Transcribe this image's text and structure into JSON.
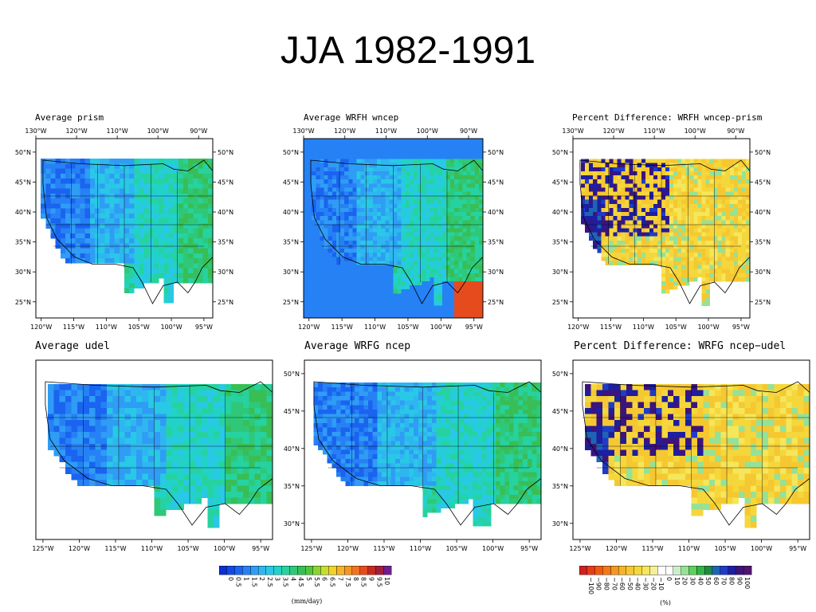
{
  "slide": {
    "title": "JJA 1982-1991"
  },
  "panels": [
    {
      "title": "Average prism",
      "field": "rainfall",
      "lon_ticks_top": [
        "130°W",
        "120°W",
        "110°W",
        "100°W",
        "90°W"
      ],
      "lon_ticks_bottom": [
        "120°W",
        "115°W",
        "110°W",
        "105°W",
        "100°W",
        "95°W"
      ],
      "lat_ticks_left": [
        "50°N",
        "45°N",
        "40°N",
        "35°N",
        "30°N",
        "25°N"
      ],
      "lat_ticks_right": [
        "50°N",
        "45°N",
        "40°N",
        "35°N",
        "30°N",
        "25°N"
      ]
    },
    {
      "title": "Average WRFH wncep",
      "field": "rainfall",
      "lon_ticks_top": [
        "130°W",
        "120°W",
        "110°W",
        "100°W",
        "90°W"
      ],
      "lon_ticks_bottom": [
        "120°W",
        "115°W",
        "110°W",
        "105°W",
        "100°W",
        "95°W"
      ],
      "lat_ticks_left": [
        "50°N",
        "45°N",
        "40°N",
        "35°N",
        "30°N",
        "25°N"
      ],
      "lat_ticks_right": [
        "50°N",
        "45°N",
        "40°N",
        "35°N",
        "30°N",
        "25°N"
      ]
    },
    {
      "title": "Percent Difference: WRFH wncep-prism",
      "field": "percent",
      "lon_ticks_top": [
        "130°W",
        "120°W",
        "110°W",
        "100°W",
        "90°W"
      ],
      "lon_ticks_bottom": [
        "120°W",
        "115°W",
        "110°W",
        "105°W",
        "100°W",
        "95°W"
      ],
      "lat_ticks_left": [
        "50°N",
        "45°N",
        "40°N",
        "35°N",
        "30°N",
        "25°N"
      ],
      "lat_ticks_right": [
        "50°N",
        "45°N",
        "40°N",
        "35°N",
        "30°N",
        "25°N"
      ]
    },
    {
      "title": "Average udel",
      "field": "rainfall",
      "lon_ticks_bottom": [
        "125°W",
        "120°W",
        "115°W",
        "110°W",
        "105°W",
        "100°W",
        "95°W"
      ],
      "lat_ticks_left": []
    },
    {
      "title": "Average WRFG ncep",
      "field": "rainfall",
      "lon_ticks_bottom": [
        "125°W",
        "120°W",
        "115°W",
        "110°W",
        "105°W",
        "100°W",
        "95°W"
      ],
      "lat_ticks_left": [
        "50°N",
        "45°N",
        "40°N",
        "35°N",
        "30°N"
      ]
    },
    {
      "title": "Percent Difference: WRFG ncep−udel",
      "field": "percent",
      "lon_ticks_bottom": [
        "125°W",
        "120°W",
        "115°W",
        "110°W",
        "105°W",
        "100°W",
        "95°W"
      ],
      "lat_ticks_left": [
        "50°N",
        "45°N",
        "40°N",
        "35°N",
        "30°N"
      ]
    }
  ],
  "colorbars": [
    {
      "unit": "(mm/day)",
      "labels": [
        "0",
        "0.5",
        "1",
        "1.5",
        "2",
        "2.5",
        "3",
        "3.5",
        "4",
        "4.5",
        "5",
        "5.5",
        "6",
        "6.5",
        "7",
        "7.5",
        "8",
        "8.5",
        "9",
        "9.5",
        "10"
      ],
      "colors": [
        "#0a2fd2",
        "#1149e6",
        "#1a64f0",
        "#2681f5",
        "#2f9cf5",
        "#2fb6f0",
        "#28c8e6",
        "#22d2c8",
        "#26d2a0",
        "#2ec878",
        "#38be55",
        "#52c63a",
        "#8cd232",
        "#c8dc2d",
        "#f0d228",
        "#f5b428",
        "#f59623",
        "#f0731e",
        "#e64b1e",
        "#c8281e",
        "#a01e3c",
        "#6e1e8c"
      ]
    },
    {
      "unit": "(%)",
      "labels": [
        "−100",
        "−90",
        "−80",
        "−70",
        "−60",
        "−50",
        "−40",
        "−30",
        "−20",
        "−10",
        "0",
        "10",
        "20",
        "30",
        "40",
        "50",
        "60",
        "70",
        "80",
        "90",
        "100"
      ],
      "colors": [
        "#d21e1e",
        "#e63c14",
        "#f05a0f",
        "#f57814",
        "#f5961e",
        "#f5b428",
        "#f5c832",
        "#f5d73c",
        "#f5e65a",
        "#f5f096",
        "#ffffff",
        "#ffffff",
        "#c8f0c8",
        "#96e196",
        "#5ad25a",
        "#32b446",
        "#1e8c3c",
        "#1e64b4",
        "#1e3cc8",
        "#1e1ea0",
        "#3c147d",
        "#50146e"
      ]
    }
  ]
}
